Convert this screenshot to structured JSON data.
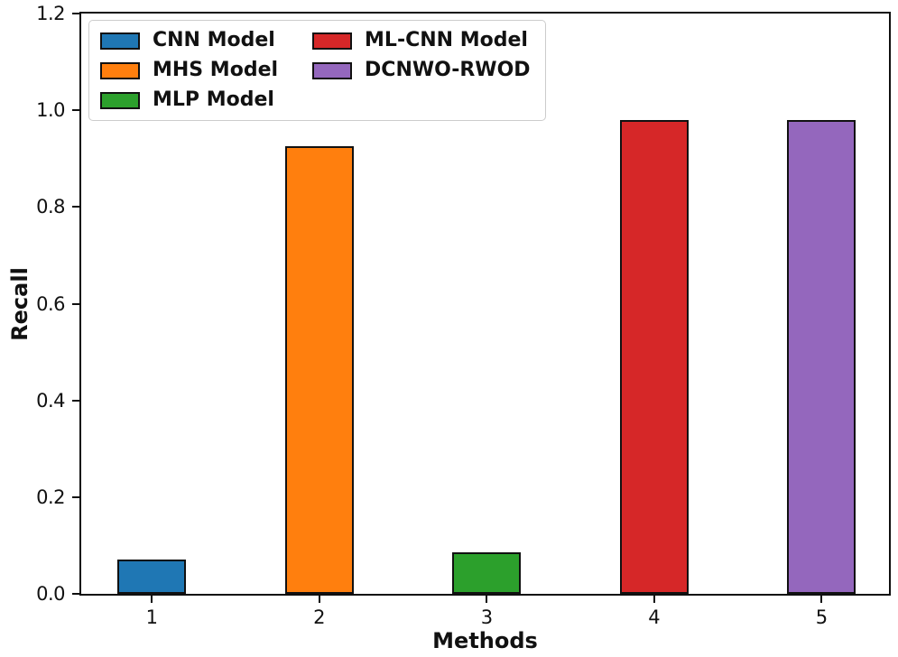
{
  "figure": {
    "background": "#ffffff",
    "text_color": "#111111",
    "spine_color": "#0f0f0f"
  },
  "chart_data": {
    "type": "bar",
    "title": "",
    "xlabel": "Methods",
    "ylabel": "Recall",
    "categories": [
      "1",
      "2",
      "3",
      "4",
      "5"
    ],
    "bars": [
      {
        "label": "CNN Model",
        "category": "1",
        "value": 0.07,
        "color": "#1f77b4"
      },
      {
        "label": "MHS Model",
        "category": "2",
        "value": 0.925,
        "color": "#ff7f0e"
      },
      {
        "label": "MLP Model",
        "category": "3",
        "value": 0.085,
        "color": "#2ca02c"
      },
      {
        "label": "ML-CNN Model",
        "category": "4",
        "value": 0.98,
        "color": "#d62728"
      },
      {
        "label": "DCNWO-RWOD",
        "category": "5",
        "value": 0.98,
        "color": "#9467bd"
      }
    ],
    "bar_edge_color": "#111111",
    "ylim": [
      0,
      1.2
    ],
    "yticks": [
      "0.0",
      "0.2",
      "0.4",
      "0.6",
      "0.8",
      "1.0",
      "1.2"
    ],
    "grid": false,
    "legend": {
      "position": "upper-left",
      "columns": 2,
      "entries": [
        "CNN Model",
        "MHS Model",
        "MLP Model",
        "ML-CNN Model",
        "DCNWO-RWOD"
      ]
    }
  }
}
